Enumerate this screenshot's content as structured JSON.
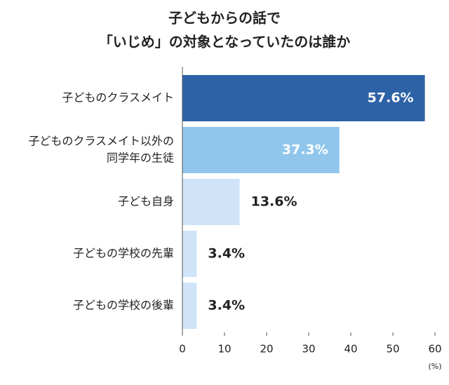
{
  "chart_data": {
    "type": "bar",
    "orientation": "horizontal",
    "title": [
      "子どもからの話で",
      "「いじめ」の対象となっていたのは誰か"
    ],
    "categories": [
      [
        "子どものクラスメイト"
      ],
      [
        "子どものクラスメイト以外の",
        "同学年の生徒"
      ],
      [
        "子ども自身"
      ],
      [
        "子どもの学校の先輩"
      ],
      [
        "子どもの学校の後輩"
      ]
    ],
    "values": [
      57.6,
      37.3,
      13.6,
      3.4,
      3.4
    ],
    "value_labels": [
      "57.6%",
      "37.3%",
      "13.6%",
      "3.4%",
      "3.4%"
    ],
    "colors": [
      "#2d62a7",
      "#90c6ec",
      "#cfe4f8",
      "#cfe4f8",
      "#cfe4f8"
    ],
    "xlim": [
      0,
      60
    ],
    "xticks": [
      0,
      10,
      20,
      30,
      40,
      50,
      60
    ],
    "x_unit": "(%)"
  }
}
